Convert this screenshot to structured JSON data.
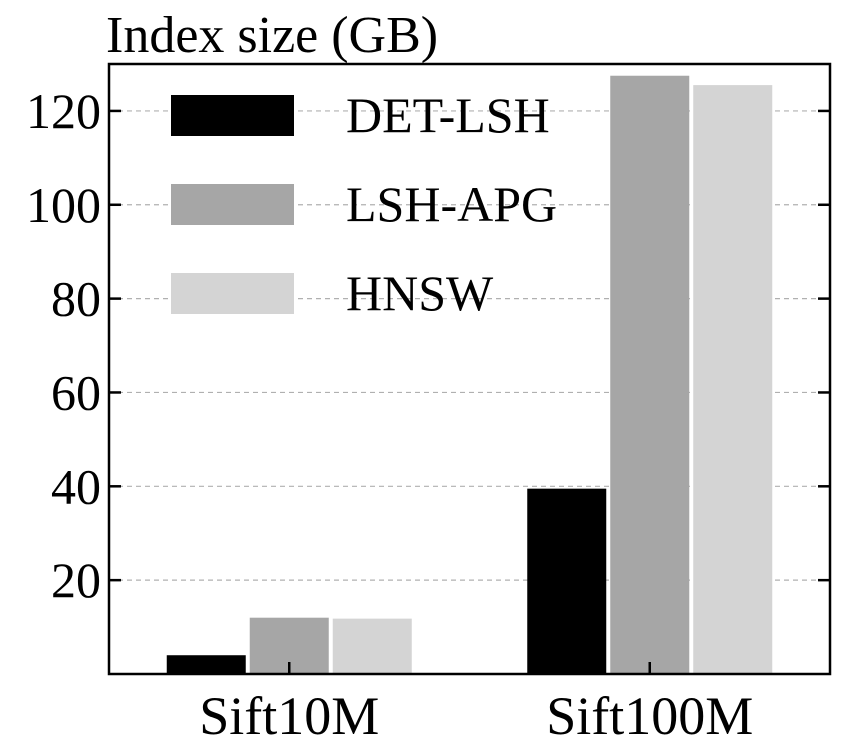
{
  "chart_data": {
    "type": "bar",
    "title": "",
    "ylabel": "Index size (GB)",
    "xlabel": "",
    "categories": [
      "Sift10M",
      "Sift100M"
    ],
    "series": [
      {
        "name": "DET-LSH",
        "values": [
          4,
          39.5
        ],
        "color": "#000000"
      },
      {
        "name": "LSH-APG",
        "values": [
          12,
          127.5
        ],
        "color": "#a6a6a6"
      },
      {
        "name": "HNSW",
        "values": [
          11.8,
          125.5
        ],
        "color": "#d4d4d4"
      }
    ],
    "ylim": [
      0,
      130
    ],
    "yticks": [
      20,
      40,
      60,
      80,
      100,
      120
    ],
    "grid": true,
    "legend_position": "top-left"
  }
}
